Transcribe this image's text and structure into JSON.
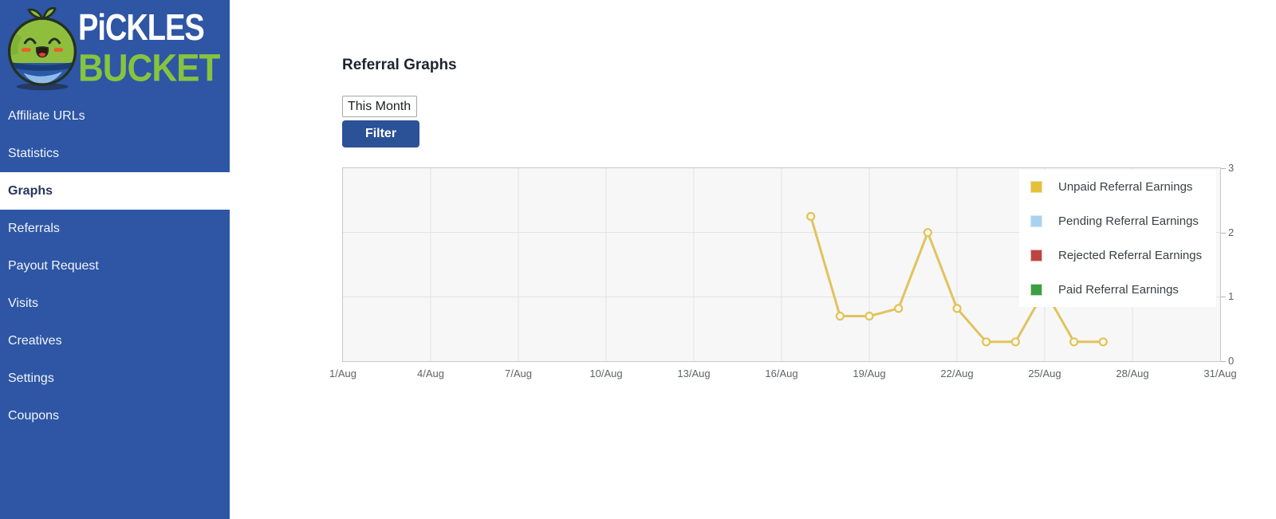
{
  "theme": {
    "sidebar_bg": "#2e56a4",
    "brand_green": "#86c440",
    "button_bg": "#2b5197",
    "active_item_text": "#26355c"
  },
  "sidebar": {
    "logo": {
      "line1": "PiCKLES",
      "line2": "BUCKET"
    },
    "items": [
      {
        "label": "Affiliate URLs",
        "active": false
      },
      {
        "label": "Statistics",
        "active": false
      },
      {
        "label": "Graphs",
        "active": true
      },
      {
        "label": "Referrals",
        "active": false
      },
      {
        "label": "Payout Request",
        "active": false
      },
      {
        "label": "Visits",
        "active": false
      },
      {
        "label": "Creatives",
        "active": false
      },
      {
        "label": "Settings",
        "active": false
      },
      {
        "label": "Coupons",
        "active": false
      }
    ]
  },
  "main": {
    "title": "Referral Graphs",
    "filter": {
      "period_value": "This Month",
      "button_label": "Filter"
    }
  },
  "chart_data": {
    "type": "line",
    "title": "",
    "x_axis": {
      "range_days": [
        1,
        31
      ],
      "tick_days": [
        1,
        4,
        7,
        10,
        13,
        16,
        19,
        22,
        25,
        28,
        31
      ],
      "tick_labels": [
        "1/Aug",
        "4/Aug",
        "7/Aug",
        "10/Aug",
        "13/Aug",
        "16/Aug",
        "19/Aug",
        "22/Aug",
        "25/Aug",
        "28/Aug",
        "31/Aug"
      ]
    },
    "y_axis": {
      "min": 0,
      "max": 3,
      "ticks": [
        0,
        1,
        2,
        3
      ]
    },
    "grid": true,
    "legend_position": "top-right-overlay",
    "plot_bg": "#f7f7f7",
    "grid_color": "#e3e3e3",
    "series": [
      {
        "name": "Unpaid Referral Earnings",
        "line_color": "#e1c35c",
        "marker_fill": "#fdf9e8",
        "swatch_fill": "#e4c03c",
        "swatch_border": "#f0e0a6",
        "points": [
          [
            17,
            2.25
          ],
          [
            18,
            0.7
          ],
          [
            19,
            0.7
          ],
          [
            20,
            0.82
          ],
          [
            21,
            2.0
          ],
          [
            22,
            0.82
          ],
          [
            23,
            0.3
          ],
          [
            24,
            0.3
          ],
          [
            25,
            1.1
          ],
          [
            26,
            0.3
          ],
          [
            27,
            0.3
          ]
        ]
      },
      {
        "name": "Pending Referral Earnings",
        "line_color": "#aad1f0",
        "marker_fill": "#eaf4fc",
        "swatch_fill": "#aad1f0",
        "swatch_border": "#d6e9f8",
        "points": []
      },
      {
        "name": "Rejected Referral Earnings",
        "line_color": "#bc4541",
        "marker_fill": "#f5dedd",
        "swatch_fill": "#bc4541",
        "swatch_border": "#e8bcba",
        "points": []
      },
      {
        "name": "Paid Referral Earnings",
        "line_color": "#3f9e44",
        "marker_fill": "#e2f1e3",
        "swatch_fill": "#3f9e44",
        "swatch_border": "#c0e0c1",
        "points": []
      }
    ]
  }
}
